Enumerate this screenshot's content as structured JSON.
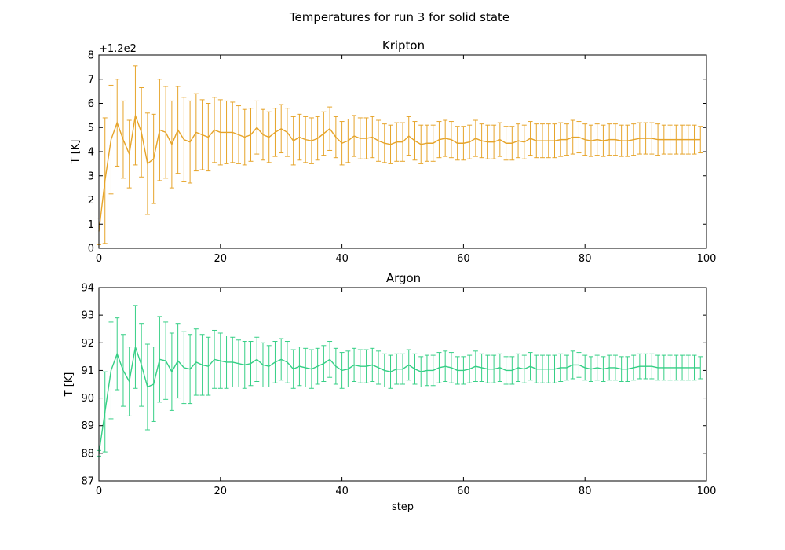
{
  "figure": {
    "title": "Temperatures for run 3 for solid state"
  },
  "chart_data": [
    {
      "type": "line",
      "title": "Kripton",
      "xlabel": "",
      "ylabel": "T [K]",
      "offset_label": "+1.2e2",
      "xlim": [
        0,
        100
      ],
      "ylim": [
        0,
        8
      ],
      "xticks": [
        0,
        20,
        40,
        60,
        80,
        100
      ],
      "yticks": [
        0,
        1,
        2,
        3,
        4,
        5,
        6,
        7,
        8
      ],
      "grid": false,
      "color": "#e6a42a",
      "x": [
        0,
        1,
        2,
        3,
        4,
        5,
        6,
        7,
        8,
        9,
        10,
        11,
        12,
        13,
        14,
        15,
        16,
        17,
        18,
        19,
        20,
        21,
        22,
        23,
        24,
        25,
        26,
        27,
        28,
        29,
        30,
        31,
        32,
        33,
        34,
        35,
        36,
        37,
        38,
        39,
        40,
        41,
        42,
        43,
        44,
        45,
        46,
        47,
        48,
        49,
        50,
        51,
        52,
        53,
        54,
        55,
        56,
        57,
        58,
        59,
        60,
        61,
        62,
        63,
        64,
        65,
        66,
        67,
        68,
        69,
        70,
        71,
        72,
        73,
        74,
        75,
        76,
        77,
        78,
        79,
        80,
        81,
        82,
        83,
        84,
        85,
        86,
        87,
        88,
        89,
        90,
        91,
        92,
        93,
        94,
        95,
        96,
        97,
        98,
        99
      ],
      "y": [
        0.7,
        2.8,
        4.5,
        5.2,
        4.5,
        3.9,
        5.5,
        4.8,
        3.5,
        3.7,
        4.9,
        4.8,
        4.3,
        4.9,
        4.5,
        4.4,
        4.8,
        4.7,
        4.6,
        4.9,
        4.8,
        4.8,
        4.8,
        4.7,
        4.6,
        4.7,
        5.0,
        4.7,
        4.6,
        4.8,
        4.95,
        4.8,
        4.45,
        4.6,
        4.5,
        4.45,
        4.55,
        4.75,
        4.95,
        4.6,
        4.35,
        4.45,
        4.65,
        4.55,
        4.55,
        4.6,
        4.45,
        4.35,
        4.3,
        4.4,
        4.4,
        4.65,
        4.45,
        4.3,
        4.35,
        4.35,
        4.5,
        4.55,
        4.5,
        4.35,
        4.35,
        4.4,
        4.55,
        4.45,
        4.4,
        4.4,
        4.5,
        4.35,
        4.35,
        4.45,
        4.4,
        4.55,
        4.45,
        4.45,
        4.45,
        4.45,
        4.5,
        4.5,
        4.6,
        4.6,
        4.5,
        4.45,
        4.5,
        4.45,
        4.5,
        4.5,
        4.45,
        4.45,
        4.5,
        4.55,
        4.55,
        4.55,
        4.5,
        4.5,
        4.5,
        4.5,
        4.5,
        4.5,
        4.5,
        4.5
      ],
      "err": [
        0.55,
        2.6,
        2.25,
        1.8,
        1.6,
        1.4,
        2.05,
        1.85,
        2.1,
        1.85,
        2.1,
        1.9,
        1.8,
        1.8,
        1.75,
        1.7,
        1.6,
        1.45,
        1.4,
        1.35,
        1.35,
        1.3,
        1.25,
        1.2,
        1.15,
        1.1,
        1.1,
        1.05,
        1.05,
        1.0,
        1.0,
        1.0,
        1.0,
        0.95,
        0.95,
        0.95,
        0.9,
        0.9,
        0.9,
        0.85,
        0.9,
        0.9,
        0.85,
        0.85,
        0.85,
        0.85,
        0.85,
        0.8,
        0.8,
        0.8,
        0.8,
        0.8,
        0.8,
        0.8,
        0.75,
        0.75,
        0.75,
        0.75,
        0.75,
        0.7,
        0.7,
        0.7,
        0.75,
        0.7,
        0.7,
        0.7,
        0.7,
        0.7,
        0.7,
        0.7,
        0.7,
        0.7,
        0.7,
        0.7,
        0.7,
        0.7,
        0.7,
        0.65,
        0.7,
        0.65,
        0.65,
        0.65,
        0.65,
        0.65,
        0.65,
        0.65,
        0.65,
        0.65,
        0.65,
        0.65,
        0.65,
        0.65,
        0.65,
        0.6,
        0.6,
        0.6,
        0.6,
        0.6,
        0.6,
        0.55
      ]
    },
    {
      "type": "line",
      "title": "Argon",
      "xlabel": "step",
      "ylabel": "T [K]",
      "xlim": [
        0,
        100
      ],
      "ylim": [
        87,
        94
      ],
      "xticks": [
        0,
        20,
        40,
        60,
        80,
        100
      ],
      "yticks": [
        87,
        88,
        89,
        90,
        91,
        92,
        93,
        94
      ],
      "grid": false,
      "color": "#35cf85",
      "x": [
        0,
        1,
        2,
        3,
        4,
        5,
        6,
        7,
        8,
        9,
        10,
        11,
        12,
        13,
        14,
        15,
        16,
        17,
        18,
        19,
        20,
        21,
        22,
        23,
        24,
        25,
        26,
        27,
        28,
        29,
        30,
        31,
        32,
        33,
        34,
        35,
        36,
        37,
        38,
        39,
        40,
        41,
        42,
        43,
        44,
        45,
        46,
        47,
        48,
        49,
        50,
        51,
        52,
        53,
        54,
        55,
        56,
        57,
        58,
        59,
        60,
        61,
        62,
        63,
        64,
        65,
        66,
        67,
        68,
        69,
        70,
        71,
        72,
        73,
        74,
        75,
        76,
        77,
        78,
        79,
        80,
        81,
        82,
        83,
        84,
        85,
        86,
        87,
        88,
        89,
        90,
        91,
        92,
        93,
        94,
        95,
        96,
        97,
        98,
        99
      ],
      "y": [
        88.0,
        89.5,
        91.0,
        91.6,
        91.0,
        90.6,
        91.85,
        91.2,
        90.4,
        90.5,
        91.4,
        91.35,
        90.95,
        91.35,
        91.1,
        91.05,
        91.3,
        91.2,
        91.15,
        91.4,
        91.35,
        91.3,
        91.3,
        91.25,
        91.2,
        91.25,
        91.4,
        91.2,
        91.15,
        91.3,
        91.4,
        91.3,
        91.05,
        91.15,
        91.1,
        91.05,
        91.15,
        91.25,
        91.4,
        91.15,
        91.0,
        91.05,
        91.2,
        91.15,
        91.15,
        91.2,
        91.1,
        91.0,
        90.95,
        91.05,
        91.05,
        91.2,
        91.05,
        90.95,
        91.0,
        91.0,
        91.1,
        91.15,
        91.1,
        91.0,
        91.0,
        91.05,
        91.15,
        91.1,
        91.05,
        91.05,
        91.1,
        91.0,
        91.0,
        91.1,
        91.05,
        91.15,
        91.05,
        91.05,
        91.05,
        91.05,
        91.1,
        91.1,
        91.2,
        91.2,
        91.1,
        91.05,
        91.1,
        91.05,
        91.1,
        91.1,
        91.05,
        91.05,
        91.1,
        91.15,
        91.15,
        91.15,
        91.1,
        91.1,
        91.1,
        91.1,
        91.1,
        91.1,
        91.1,
        91.1
      ],
      "err": [
        0.1,
        1.45,
        1.75,
        1.3,
        1.3,
        1.25,
        1.5,
        1.5,
        1.55,
        1.35,
        1.55,
        1.4,
        1.4,
        1.35,
        1.3,
        1.25,
        1.2,
        1.1,
        1.05,
        1.05,
        1.0,
        0.95,
        0.9,
        0.85,
        0.85,
        0.8,
        0.8,
        0.8,
        0.75,
        0.75,
        0.75,
        0.75,
        0.7,
        0.7,
        0.7,
        0.7,
        0.65,
        0.65,
        0.65,
        0.65,
        0.65,
        0.65,
        0.6,
        0.6,
        0.6,
        0.6,
        0.6,
        0.6,
        0.6,
        0.55,
        0.55,
        0.55,
        0.55,
        0.55,
        0.55,
        0.55,
        0.55,
        0.55,
        0.55,
        0.5,
        0.5,
        0.5,
        0.55,
        0.5,
        0.5,
        0.5,
        0.5,
        0.5,
        0.5,
        0.5,
        0.5,
        0.5,
        0.5,
        0.5,
        0.5,
        0.5,
        0.5,
        0.45,
        0.5,
        0.45,
        0.45,
        0.45,
        0.45,
        0.45,
        0.45,
        0.45,
        0.45,
        0.45,
        0.45,
        0.45,
        0.45,
        0.45,
        0.45,
        0.45,
        0.45,
        0.45,
        0.45,
        0.45,
        0.45,
        0.4
      ]
    }
  ]
}
